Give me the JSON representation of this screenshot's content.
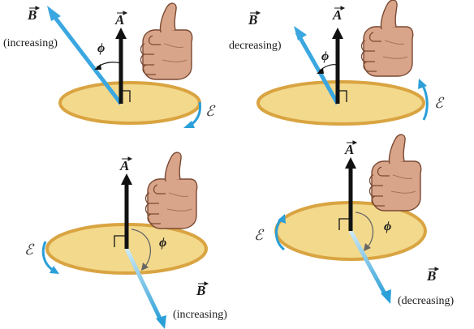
{
  "colors": {
    "field_arrow": "#3aa7e0",
    "field_arrow_light": "#bfe3f5",
    "area_vector": "#111111",
    "disk_fill": "#f3d98c",
    "disk_edge": "#d9a441",
    "emf_arrow": "#2a9fd8",
    "hand_skin": "#d9a58a"
  },
  "panels": [
    {
      "id": "top-left",
      "b_vector": "B",
      "b_caption": "(increasing)",
      "a_vector": "A",
      "angle": "ϕ",
      "emf": "ℰ",
      "emf_direction": "clockwise-right",
      "hand_icon": "thumbs-up-hand-icon"
    },
    {
      "id": "top-right",
      "b_vector": "B",
      "b_caption": "decreasing)",
      "a_vector": "A",
      "angle": "ϕ",
      "emf": "ℰ",
      "emf_direction": "counterclockwise-right",
      "hand_icon": "thumbs-up-hand-icon"
    },
    {
      "id": "bottom-left",
      "b_vector": "B",
      "b_caption": "(increasing)",
      "a_vector": "A",
      "angle": "ϕ",
      "emf": "ℰ",
      "emf_direction": "clockwise-left",
      "hand_icon": "thumbs-up-hand-icon"
    },
    {
      "id": "bottom-right",
      "b_vector": "B",
      "b_caption": "(decreasing)",
      "a_vector": "A",
      "angle": "ϕ",
      "emf": "ℰ",
      "emf_direction": "counterclockwise-left",
      "hand_icon": "thumbs-up-hand-icon"
    }
  ]
}
